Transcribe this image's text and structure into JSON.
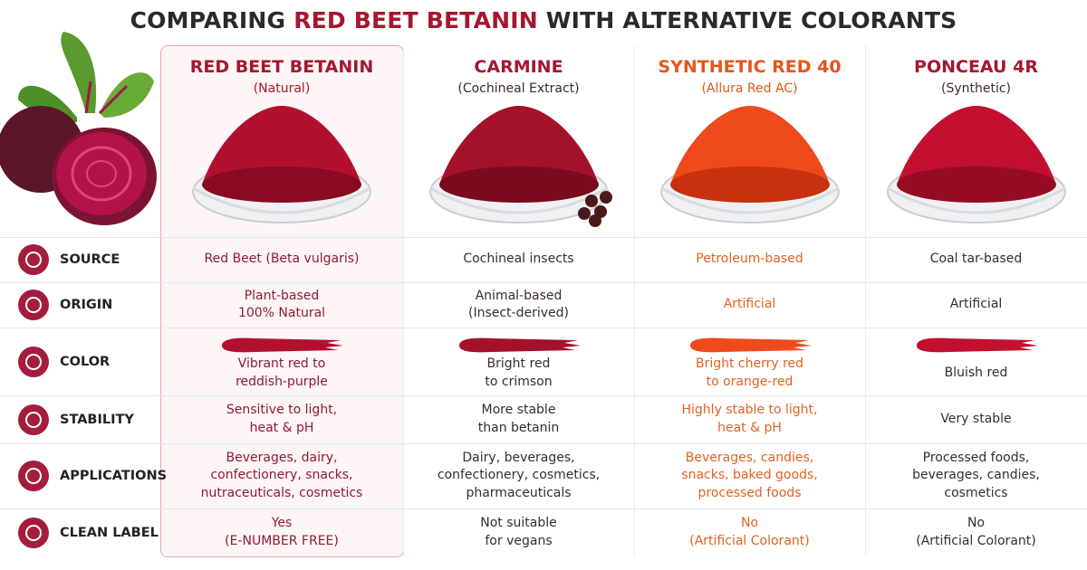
{
  "header": {
    "title": {
      "before": "COMPARING",
      "highlight": "RED BEET BETANIN",
      "after": "WITH ALTERNATIVE COLORANTS"
    }
  },
  "columns": [
    {
      "name": "RED BEET BETANIN",
      "subtitle": "(Natural)"
    },
    {
      "name": "CARMINE",
      "subtitle": "(Cochineal Extract)"
    },
    {
      "name": "SYNTHETIC RED 40",
      "subtitle": "(Allura Red AC)"
    },
    {
      "name": "PONCEAU 4R",
      "subtitle": "(Synthetic)"
    }
  ],
  "rows": [
    {
      "label": "SOURCE",
      "cells": [
        [
          "Red Beet (Beta vulgaris)"
        ],
        [
          "Cochineal insects"
        ],
        [
          "Petroleum-based"
        ],
        [
          "Coal tar-based"
        ]
      ]
    },
    {
      "label": "ORIGIN",
      "cells": [
        [
          "Plant-based",
          "100% Natural"
        ],
        [
          "Animal-based",
          "(Insect-derived)"
        ],
        [
          "Artificial"
        ],
        [
          "Artificial"
        ]
      ]
    },
    {
      "label": "COLOR",
      "cells": [
        [
          "Vibrant red to",
          "reddish-purple"
        ],
        [
          "Bright red",
          "to crimson"
        ],
        [
          "Bright cherry red",
          "to orange-red"
        ],
        [
          "Bluish red"
        ]
      ]
    },
    {
      "label": "STABILITY",
      "cells": [
        [
          "Sensitive to light,",
          "heat & pH"
        ],
        [
          "More stable",
          "than betanin"
        ],
        [
          "Highly stable to light,",
          "heat & pH"
        ],
        [
          "Very stable"
        ]
      ]
    },
    {
      "label": "APPLICATIONS",
      "cells": [
        [
          "Beverages, dairy,",
          "confectionery, snacks,",
          "nutraceuticals, cosmetics"
        ],
        [
          "Dairy, beverages,",
          "confectionery, cosmetics,",
          "pharmaceuticals"
        ],
        [
          "Beverages, candies,",
          "snacks, baked goods,",
          "processed foods"
        ],
        [
          "Processed foods,",
          "beverages, candies,",
          "cosmetics"
        ]
      ]
    },
    {
      "label": "CLEAN LABEL",
      "cells": [
        [
          "Yes",
          "(E-NUMBER FREE)"
        ],
        [
          "Not suitable",
          "for vegans"
        ],
        [
          "No",
          "(Artificial Colorant)"
        ],
        [
          "No",
          "(Artificial Colorant)"
        ]
      ]
    }
  ]
}
